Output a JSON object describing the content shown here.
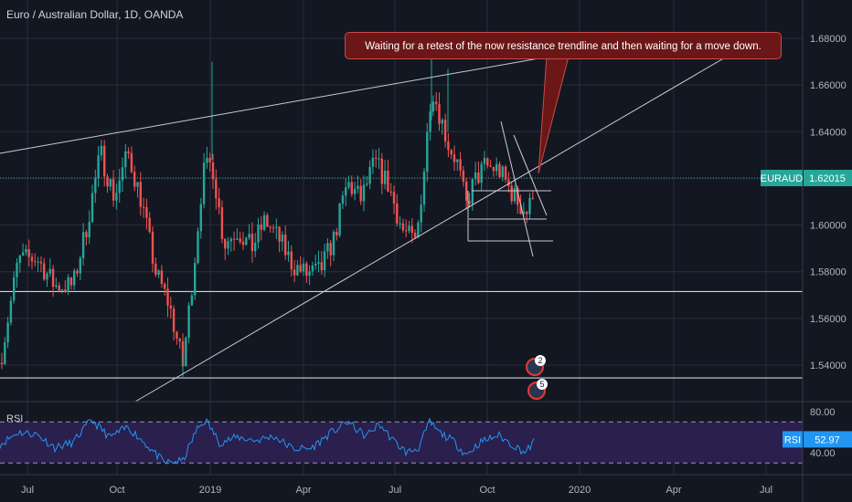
{
  "chart_data": [
    {
      "type": "candlestick",
      "title": "Euro / Australian Dollar, 1D, OANDA",
      "symbol": "EURAUD",
      "current_price": "1.62015",
      "x_tick_labels": [
        "Jul",
        "Oct",
        "2019",
        "Apr",
        "Jul",
        "Oct",
        "2020",
        "Apr",
        "Jul"
      ],
      "y_tick_labels": [
        "1.68000",
        "1.66000",
        "1.64000",
        "1.62000",
        "1.60000",
        "1.58000",
        "1.56000",
        "1.54000"
      ],
      "ylim": [
        1.523,
        1.693
      ],
      "annotation": "Waiting for a retest of the now resistance trendline and then waiting for a move down.",
      "horizontal_levels": [
        1.5715,
        1.5345
      ],
      "event_badges": [
        "2",
        "5"
      ],
      "price_path": [
        {
          "x": 0,
          "y": 1.541
        },
        {
          "x": 20,
          "y": 1.585
        },
        {
          "x": 40,
          "y": 1.586
        },
        {
          "x": 60,
          "y": 1.574
        },
        {
          "x": 80,
          "y": 1.574
        },
        {
          "x": 95,
          "y": 1.6
        },
        {
          "x": 110,
          "y": 1.631
        },
        {
          "x": 125,
          "y": 1.612
        },
        {
          "x": 140,
          "y": 1.631
        },
        {
          "x": 155,
          "y": 1.61
        },
        {
          "x": 170,
          "y": 1.58
        },
        {
          "x": 185,
          "y": 1.566
        },
        {
          "x": 200,
          "y": 1.54
        },
        {
          "x": 212,
          "y": 1.582
        },
        {
          "x": 222,
          "y": 1.622
        },
        {
          "x": 232,
          "y": 1.627
        },
        {
          "x": 245,
          "y": 1.592
        },
        {
          "x": 260,
          "y": 1.598
        },
        {
          "x": 275,
          "y": 1.59
        },
        {
          "x": 290,
          "y": 1.602
        },
        {
          "x": 305,
          "y": 1.594
        },
        {
          "x": 320,
          "y": 1.583
        },
        {
          "x": 335,
          "y": 1.579
        },
        {
          "x": 350,
          "y": 1.58
        },
        {
          "x": 365,
          "y": 1.594
        },
        {
          "x": 380,
          "y": 1.618
        },
        {
          "x": 395,
          "y": 1.611
        },
        {
          "x": 410,
          "y": 1.627
        },
        {
          "x": 425,
          "y": 1.617
        },
        {
          "x": 440,
          "y": 1.598
        },
        {
          "x": 455,
          "y": 1.592
        },
        {
          "x": 465,
          "y": 1.628
        },
        {
          "x": 472,
          "y": 1.66
        },
        {
          "x": 480,
          "y": 1.649
        },
        {
          "x": 490,
          "y": 1.635
        },
        {
          "x": 500,
          "y": 1.627
        },
        {
          "x": 510,
          "y": 1.608
        },
        {
          "x": 518,
          "y": 1.618
        },
        {
          "x": 530,
          "y": 1.625
        },
        {
          "x": 545,
          "y": 1.624
        },
        {
          "x": 558,
          "y": 1.615
        },
        {
          "x": 570,
          "y": 1.608
        },
        {
          "x": 578,
          "y": 1.605
        },
        {
          "x": 585,
          "y": 1.62
        }
      ]
    },
    {
      "type": "line",
      "title": "RSI",
      "current_value": "52.97",
      "y_tick_labels": [
        "80.00",
        "40.00"
      ],
      "ylim": [
        10,
        95
      ],
      "bands": [
        70,
        30
      ],
      "values": [
        {
          "x": 0,
          "y": 48
        },
        {
          "x": 20,
          "y": 60
        },
        {
          "x": 40,
          "y": 58
        },
        {
          "x": 60,
          "y": 45
        },
        {
          "x": 80,
          "y": 50
        },
        {
          "x": 100,
          "y": 72
        },
        {
          "x": 120,
          "y": 55
        },
        {
          "x": 140,
          "y": 65
        },
        {
          "x": 160,
          "y": 48
        },
        {
          "x": 180,
          "y": 30
        },
        {
          "x": 200,
          "y": 32
        },
        {
          "x": 215,
          "y": 62
        },
        {
          "x": 225,
          "y": 72
        },
        {
          "x": 240,
          "y": 50
        },
        {
          "x": 260,
          "y": 55
        },
        {
          "x": 280,
          "y": 52
        },
        {
          "x": 300,
          "y": 56
        },
        {
          "x": 320,
          "y": 44
        },
        {
          "x": 340,
          "y": 44
        },
        {
          "x": 360,
          "y": 58
        },
        {
          "x": 380,
          "y": 70
        },
        {
          "x": 400,
          "y": 56
        },
        {
          "x": 415,
          "y": 68
        },
        {
          "x": 430,
          "y": 52
        },
        {
          "x": 445,
          "y": 40
        },
        {
          "x": 458,
          "y": 45
        },
        {
          "x": 470,
          "y": 70
        },
        {
          "x": 480,
          "y": 60
        },
        {
          "x": 495,
          "y": 52
        },
        {
          "x": 510,
          "y": 38
        },
        {
          "x": 525,
          "y": 50
        },
        {
          "x": 545,
          "y": 57
        },
        {
          "x": 560,
          "y": 48
        },
        {
          "x": 575,
          "y": 40
        },
        {
          "x": 585,
          "y": 52
        }
      ]
    }
  ],
  "colors": {
    "background": "#131722",
    "up": "#26a69a",
    "down": "#ef5350",
    "grid": "#2a2e39",
    "trendline": "#c8cbd3",
    "price_tag": "#26a69a",
    "rsi_line": "#2196f3",
    "rsi_band_fill": "#2a1f4d",
    "badge_ring": "#e53935"
  }
}
